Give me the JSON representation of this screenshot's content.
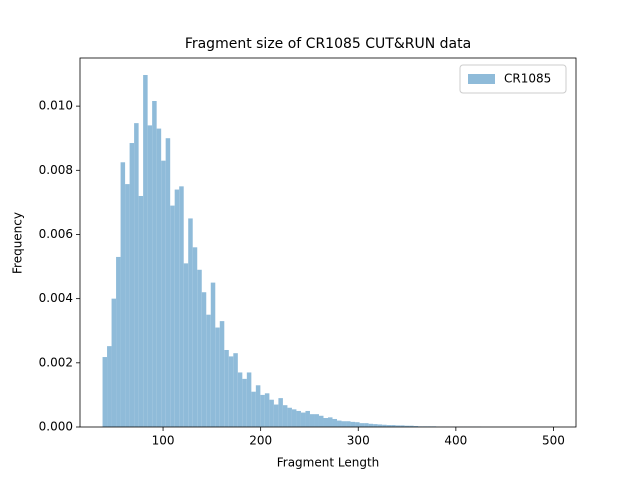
{
  "chart_data": {
    "type": "histogram",
    "title": "Fragment size of CR1085 CUT&RUN data",
    "x_label": "Fragment Length",
    "y_label": "Frequency",
    "bins": [
      38,
      42.62,
      47.24,
      51.86,
      56.48,
      61.1,
      65.72,
      70.34,
      74.96,
      79.58,
      84.2,
      88.82,
      93.44,
      98.06,
      102.68,
      107.3,
      111.92,
      116.54,
      121.16,
      125.78,
      130.4,
      135.02,
      139.64,
      144.26,
      148.88,
      153.5,
      158.12,
      162.74,
      167.36,
      171.98,
      176.6,
      181.22,
      185.84,
      190.46,
      195.08,
      199.7,
      204.32,
      208.94,
      213.56,
      218.18,
      222.8,
      227.42,
      232.04,
      236.66,
      241.28,
      245.9,
      250.52,
      255.14,
      259.76,
      264.38,
      269,
      273.62,
      278.24,
      282.86,
      287.48,
      292.1,
      296.72,
      301.34,
      305.96,
      310.58,
      315.2,
      319.82,
      324.44,
      329.06,
      333.68,
      338.3,
      342.92,
      347.54,
      352.16,
      356.78,
      361.4,
      366.02,
      370.64,
      375.26,
      379.88,
      384.5,
      389.12,
      393.74,
      398.36,
      402.98,
      407.6,
      412.22,
      416.84,
      421.46,
      426.08,
      430.7,
      435.32,
      439.94,
      444.56,
      449.18,
      453.8,
      458.42,
      463.04,
      467.66,
      472.28,
      476.9,
      481.52,
      486.14,
      490.76,
      495.38,
      500
    ],
    "series": [
      {
        "name": "CR1085",
        "color": "#8fbbd9",
        "values": [
          0.00218,
          0.00252,
          0.004,
          0.0053,
          0.00825,
          0.00757,
          0.00885,
          0.00947,
          0.0072,
          0.01097,
          0.0094,
          0.01016,
          0.0093,
          0.0083,
          0.009,
          0.0069,
          0.0074,
          0.0075,
          0.0051,
          0.0065,
          0.0056,
          0.0049,
          0.0042,
          0.0035,
          0.0045,
          0.0031,
          0.0033,
          0.0024,
          0.0022,
          0.0023,
          0.0017,
          0.0015,
          0.0017,
          0.0011,
          0.0013,
          0.001,
          0.00105,
          0.00085,
          0.0007,
          0.0009,
          0.00068,
          0.0006,
          0.00055,
          0.0005,
          0.00045,
          0.0005,
          0.0004,
          0.0004,
          0.00035,
          0.00028,
          0.0003,
          0.00025,
          0.0002,
          0.00018,
          0.00018,
          0.00016,
          0.00015,
          0.00012,
          0.00012,
          0.0001,
          9e-05,
          8e-05,
          7e-05,
          6e-05,
          6e-05,
          5e-05,
          5e-05,
          4e-05,
          4e-05,
          3e-05,
          2e-05,
          2e-05,
          2e-05,
          2e-05,
          1e-05,
          1e-05,
          1e-05,
          1e-05,
          1e-05,
          1e-05,
          1e-05,
          1e-05,
          1e-05,
          1e-05,
          5e-06,
          5e-06,
          5e-06,
          5e-06,
          5e-06,
          5e-06,
          5e-06,
          5e-06,
          5e-06,
          5e-06,
          5e-06,
          5e-06,
          5e-06,
          5e-06,
          5e-06,
          5e-06
        ]
      }
    ],
    "xlim": [
      14.9,
      523.1
    ],
    "ylim": [
      0,
      0.0115
    ],
    "xticks": [
      100,
      200,
      300,
      400,
      500
    ],
    "yticks": [
      {
        "value": 0,
        "label": "0.000"
      },
      {
        "value": 0.002,
        "label": "0.002"
      },
      {
        "value": 0.004,
        "label": "0.004"
      },
      {
        "value": 0.006,
        "label": "0.006"
      },
      {
        "value": 0.008,
        "label": "0.008"
      },
      {
        "value": 0.01,
        "label": "0.010"
      }
    ],
    "legend": "upper right"
  }
}
